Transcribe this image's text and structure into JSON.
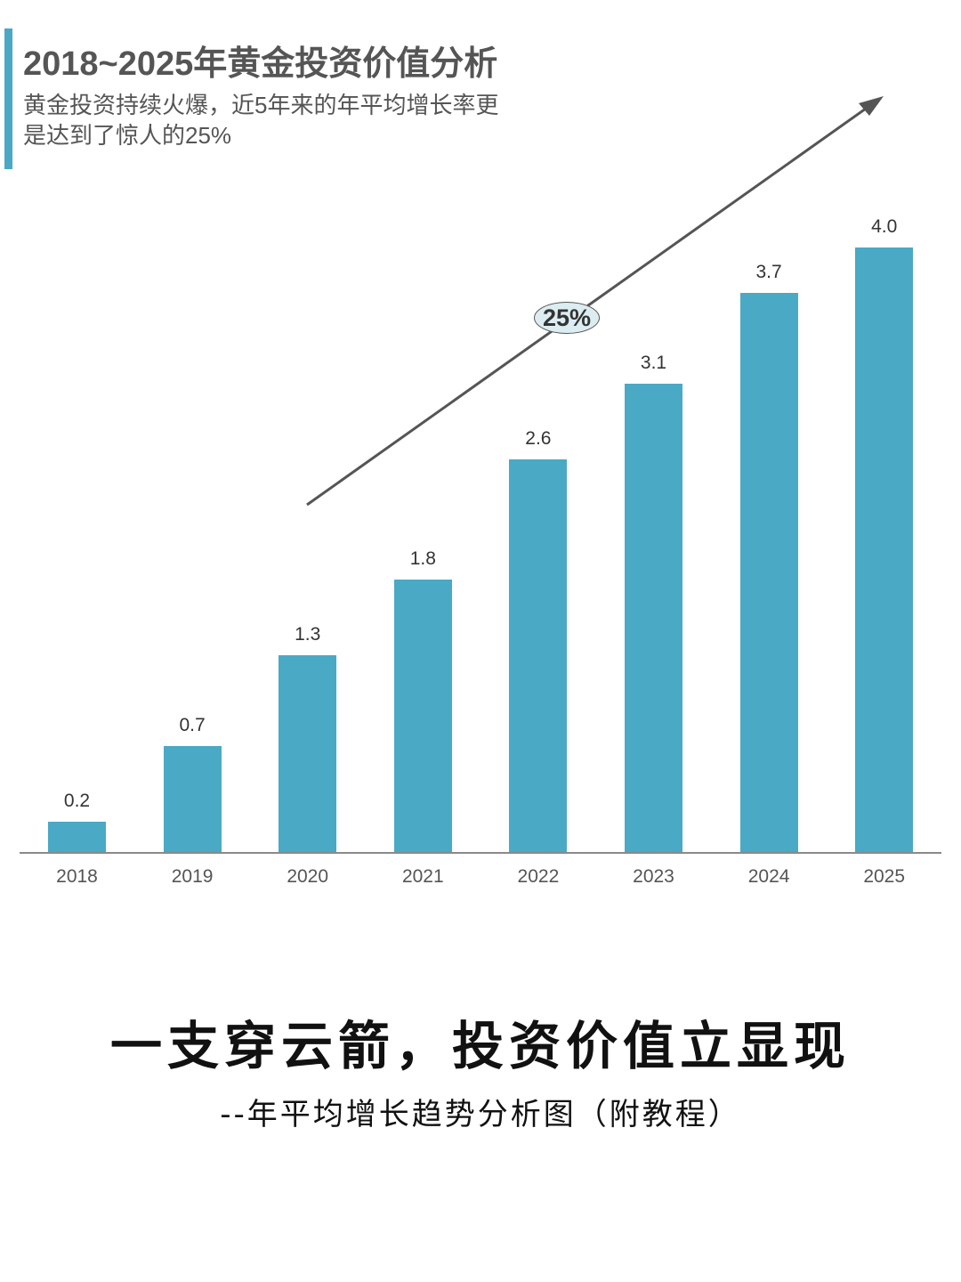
{
  "header": {
    "title": "2018~2025年黄金投资价值分析",
    "subtitle_line1": "黄金投资持续火爆，近5年来的年平均增长率更",
    "subtitle_line2": "是达到了惊人的25%"
  },
  "annotation": {
    "growth_badge": "25%",
    "arrow_icon": "trend-arrow-up-right"
  },
  "colors": {
    "bar": "#4aa9c5",
    "accent": "#4aa8c4",
    "text": "#555555",
    "badge_fill": "#dcedf2"
  },
  "chart_data": {
    "type": "bar",
    "title": "2018~2025年黄金投资价值分析",
    "categories": [
      "2018",
      "2019",
      "2020",
      "2021",
      "2022",
      "2023",
      "2024",
      "2025"
    ],
    "values": [
      0.2,
      0.7,
      1.3,
      1.8,
      2.6,
      3.1,
      3.7,
      4.0
    ],
    "value_labels": [
      "0.2",
      "0.7",
      "1.3",
      "1.8",
      "2.6",
      "3.1",
      "3.7",
      "4.0"
    ],
    "xlabel": "",
    "ylabel": "",
    "ylim": [
      0,
      4.0
    ],
    "grid": false,
    "legend": "none",
    "annotations": [
      "25% (average annual growth rate, trend arrow)"
    ]
  },
  "footer": {
    "headline": "一支穿云箭，投资价值立显现",
    "tagline": "--年平均增长趋势分析图（附教程）"
  }
}
